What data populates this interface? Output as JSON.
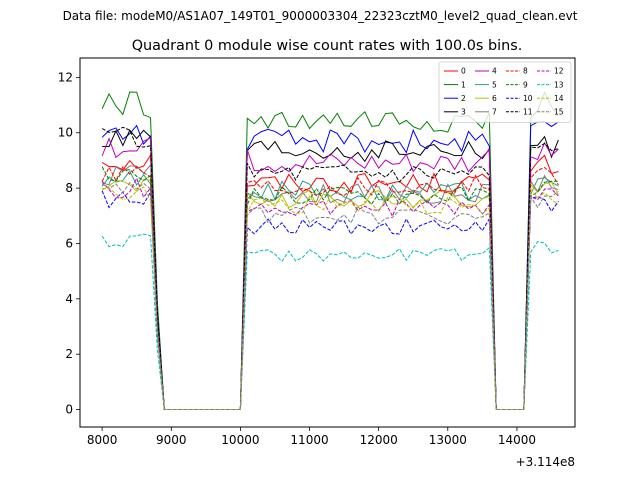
{
  "figure": {
    "suptitle": "Data file: modeM0/AS1A07_149T01_9000003304_22323cztM0_level2_quad_clean.evt",
    "title": "Quadrant 0 module wise count rates with 100.0s bins."
  },
  "chart_data": {
    "type": "line",
    "title": "Quadrant 0 module wise count rates with 100.0s bins.",
    "xlabel": "",
    "ylabel": "",
    "x_offset_label": "+3.114e8",
    "x_offset": 311400000,
    "xlim": [
      7680,
      14840
    ],
    "ylim": [
      -0.63,
      12.7
    ],
    "x_ticks": [
      8000,
      9000,
      10000,
      11000,
      12000,
      13000,
      14000
    ],
    "y_ticks": [
      0,
      2,
      4,
      6,
      8,
      10,
      12
    ],
    "grid": false,
    "legend_placement": "top-right",
    "legend_columns": 4,
    "segments": [
      {
        "x_start": 8000,
        "x_end": 8800
      },
      {
        "x_start": 10100,
        "x_end": 13600
      },
      {
        "x_start": 14200,
        "x_end": 14600
      }
    ],
    "series": [
      {
        "name": "0",
        "color": "#ff0000",
        "style": "solid",
        "levels": [
          9.0,
          8.2,
          8.8
        ]
      },
      {
        "name": "1",
        "color": "#008000",
        "style": "solid",
        "levels": [
          11.0,
          10.3,
          11.0
        ]
      },
      {
        "name": "2",
        "color": "#0000ff",
        "style": "solid",
        "levels": [
          10.0,
          9.7,
          10.0
        ]
      },
      {
        "name": "3",
        "color": "#000000",
        "style": "solid",
        "levels": [
          9.7,
          9.3,
          9.5
        ]
      },
      {
        "name": "4",
        "color": "#bf00bf",
        "style": "solid",
        "levels": [
          9.4,
          9.0,
          9.3
        ]
      },
      {
        "name": "5",
        "color": "#2ca089",
        "style": "solid",
        "levels": [
          8.3,
          7.9,
          8.1
        ]
      },
      {
        "name": "6",
        "color": "#bfbf00",
        "style": "solid",
        "levels": [
          8.2,
          7.6,
          7.9
        ]
      },
      {
        "name": "7",
        "color": "#7f7f7f",
        "style": "solid",
        "levels": [
          8.5,
          7.8,
          8.2
        ]
      },
      {
        "name": "8",
        "color": "#ff0000",
        "style": "dashed",
        "levels": [
          8.6,
          8.1,
          8.5
        ]
      },
      {
        "name": "9",
        "color": "#008000",
        "style": "dashed",
        "levels": [
          8.4,
          7.7,
          8.0
        ]
      },
      {
        "name": "10",
        "color": "#0000ff",
        "style": "dashed",
        "levels": [
          7.6,
          6.6,
          7.4
        ]
      },
      {
        "name": "11",
        "color": "#000000",
        "style": "dashed",
        "levels": [
          9.8,
          8.6,
          9.4
        ]
      },
      {
        "name": "12",
        "color": "#bf00bf",
        "style": "dashed",
        "levels": [
          8.0,
          7.3,
          7.8
        ]
      },
      {
        "name": "13",
        "color": "#00bfbf",
        "style": "dashed",
        "levels": [
          6.1,
          5.6,
          5.9
        ]
      },
      {
        "name": "14",
        "color": "#bfbf00",
        "style": "dashed",
        "levels": [
          7.8,
          7.4,
          7.7
        ]
      },
      {
        "name": "15",
        "color": "#7f7f7f",
        "style": "dashed",
        "levels": [
          8.0,
          7.0,
          7.6
        ]
      }
    ]
  }
}
